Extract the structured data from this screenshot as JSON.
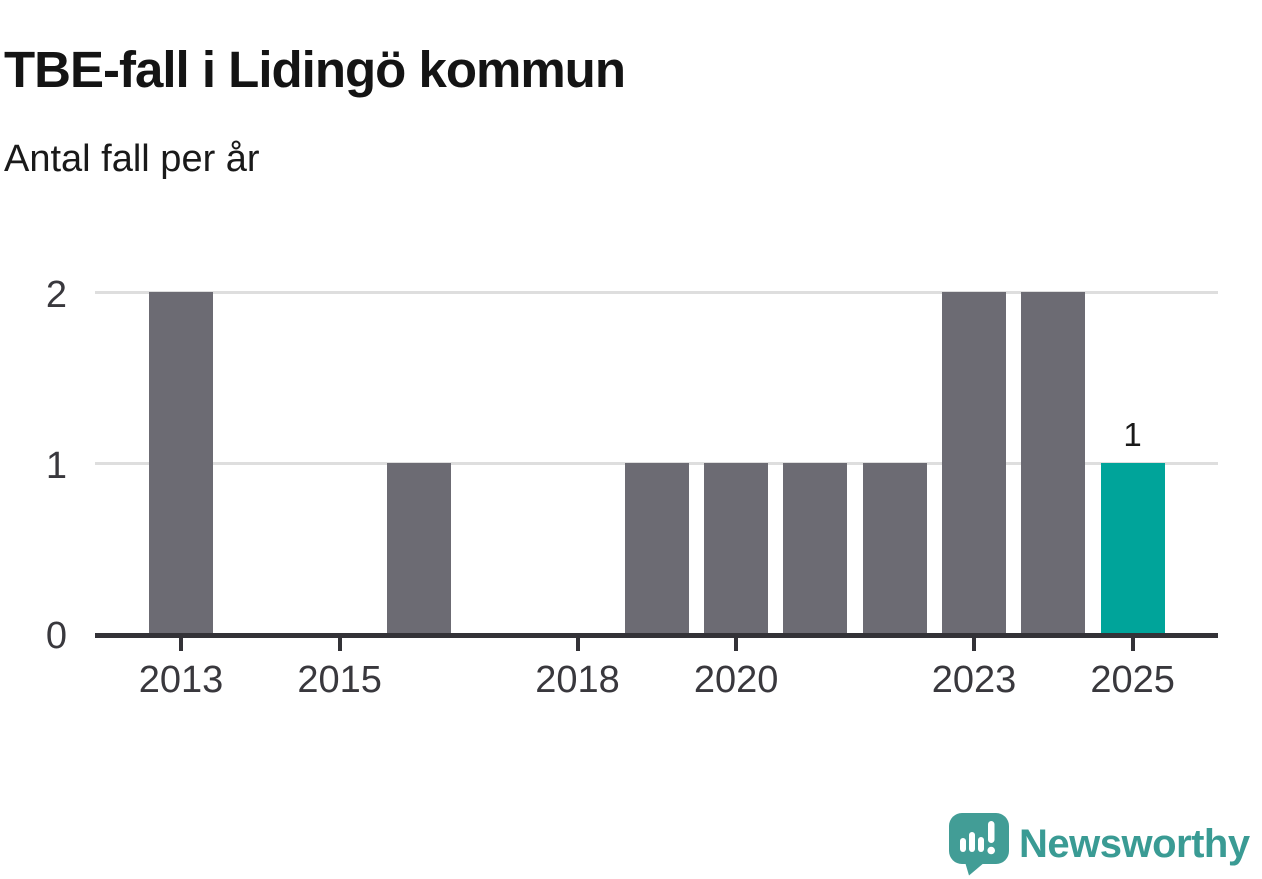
{
  "header": {
    "title": "TBE-fall i Lidingö kommun",
    "subtitle": "Antal fall per år"
  },
  "chart_data": {
    "type": "bar",
    "title": "TBE-fall i Lidingö kommun",
    "subtitle": "Antal fall per år",
    "categories": [
      2013,
      2014,
      2015,
      2016,
      2017,
      2018,
      2019,
      2020,
      2021,
      2022,
      2023,
      2024,
      2025
    ],
    "values": [
      2,
      0,
      0,
      1,
      0,
      0,
      1,
      1,
      1,
      1,
      2,
      2,
      1
    ],
    "highlight_category": 2025,
    "highlight_value_label": "1",
    "x_tick_labels": [
      "2013",
      "2015",
      "2018",
      "2020",
      "2023",
      "2025"
    ],
    "y_ticks": [
      0,
      1,
      2
    ],
    "ylim": [
      0,
      2
    ],
    "grid": "horizontal",
    "legend": "none",
    "colors": {
      "bar": "#6C6B73",
      "highlight": "#00A49A",
      "gridline": "#DEDEDE",
      "axis": "#333237",
      "tick_label": "#39383D"
    }
  },
  "footer": {
    "brand": "Newsworthy",
    "logo_color": "#429D96",
    "text_color": "#3A9B94"
  }
}
